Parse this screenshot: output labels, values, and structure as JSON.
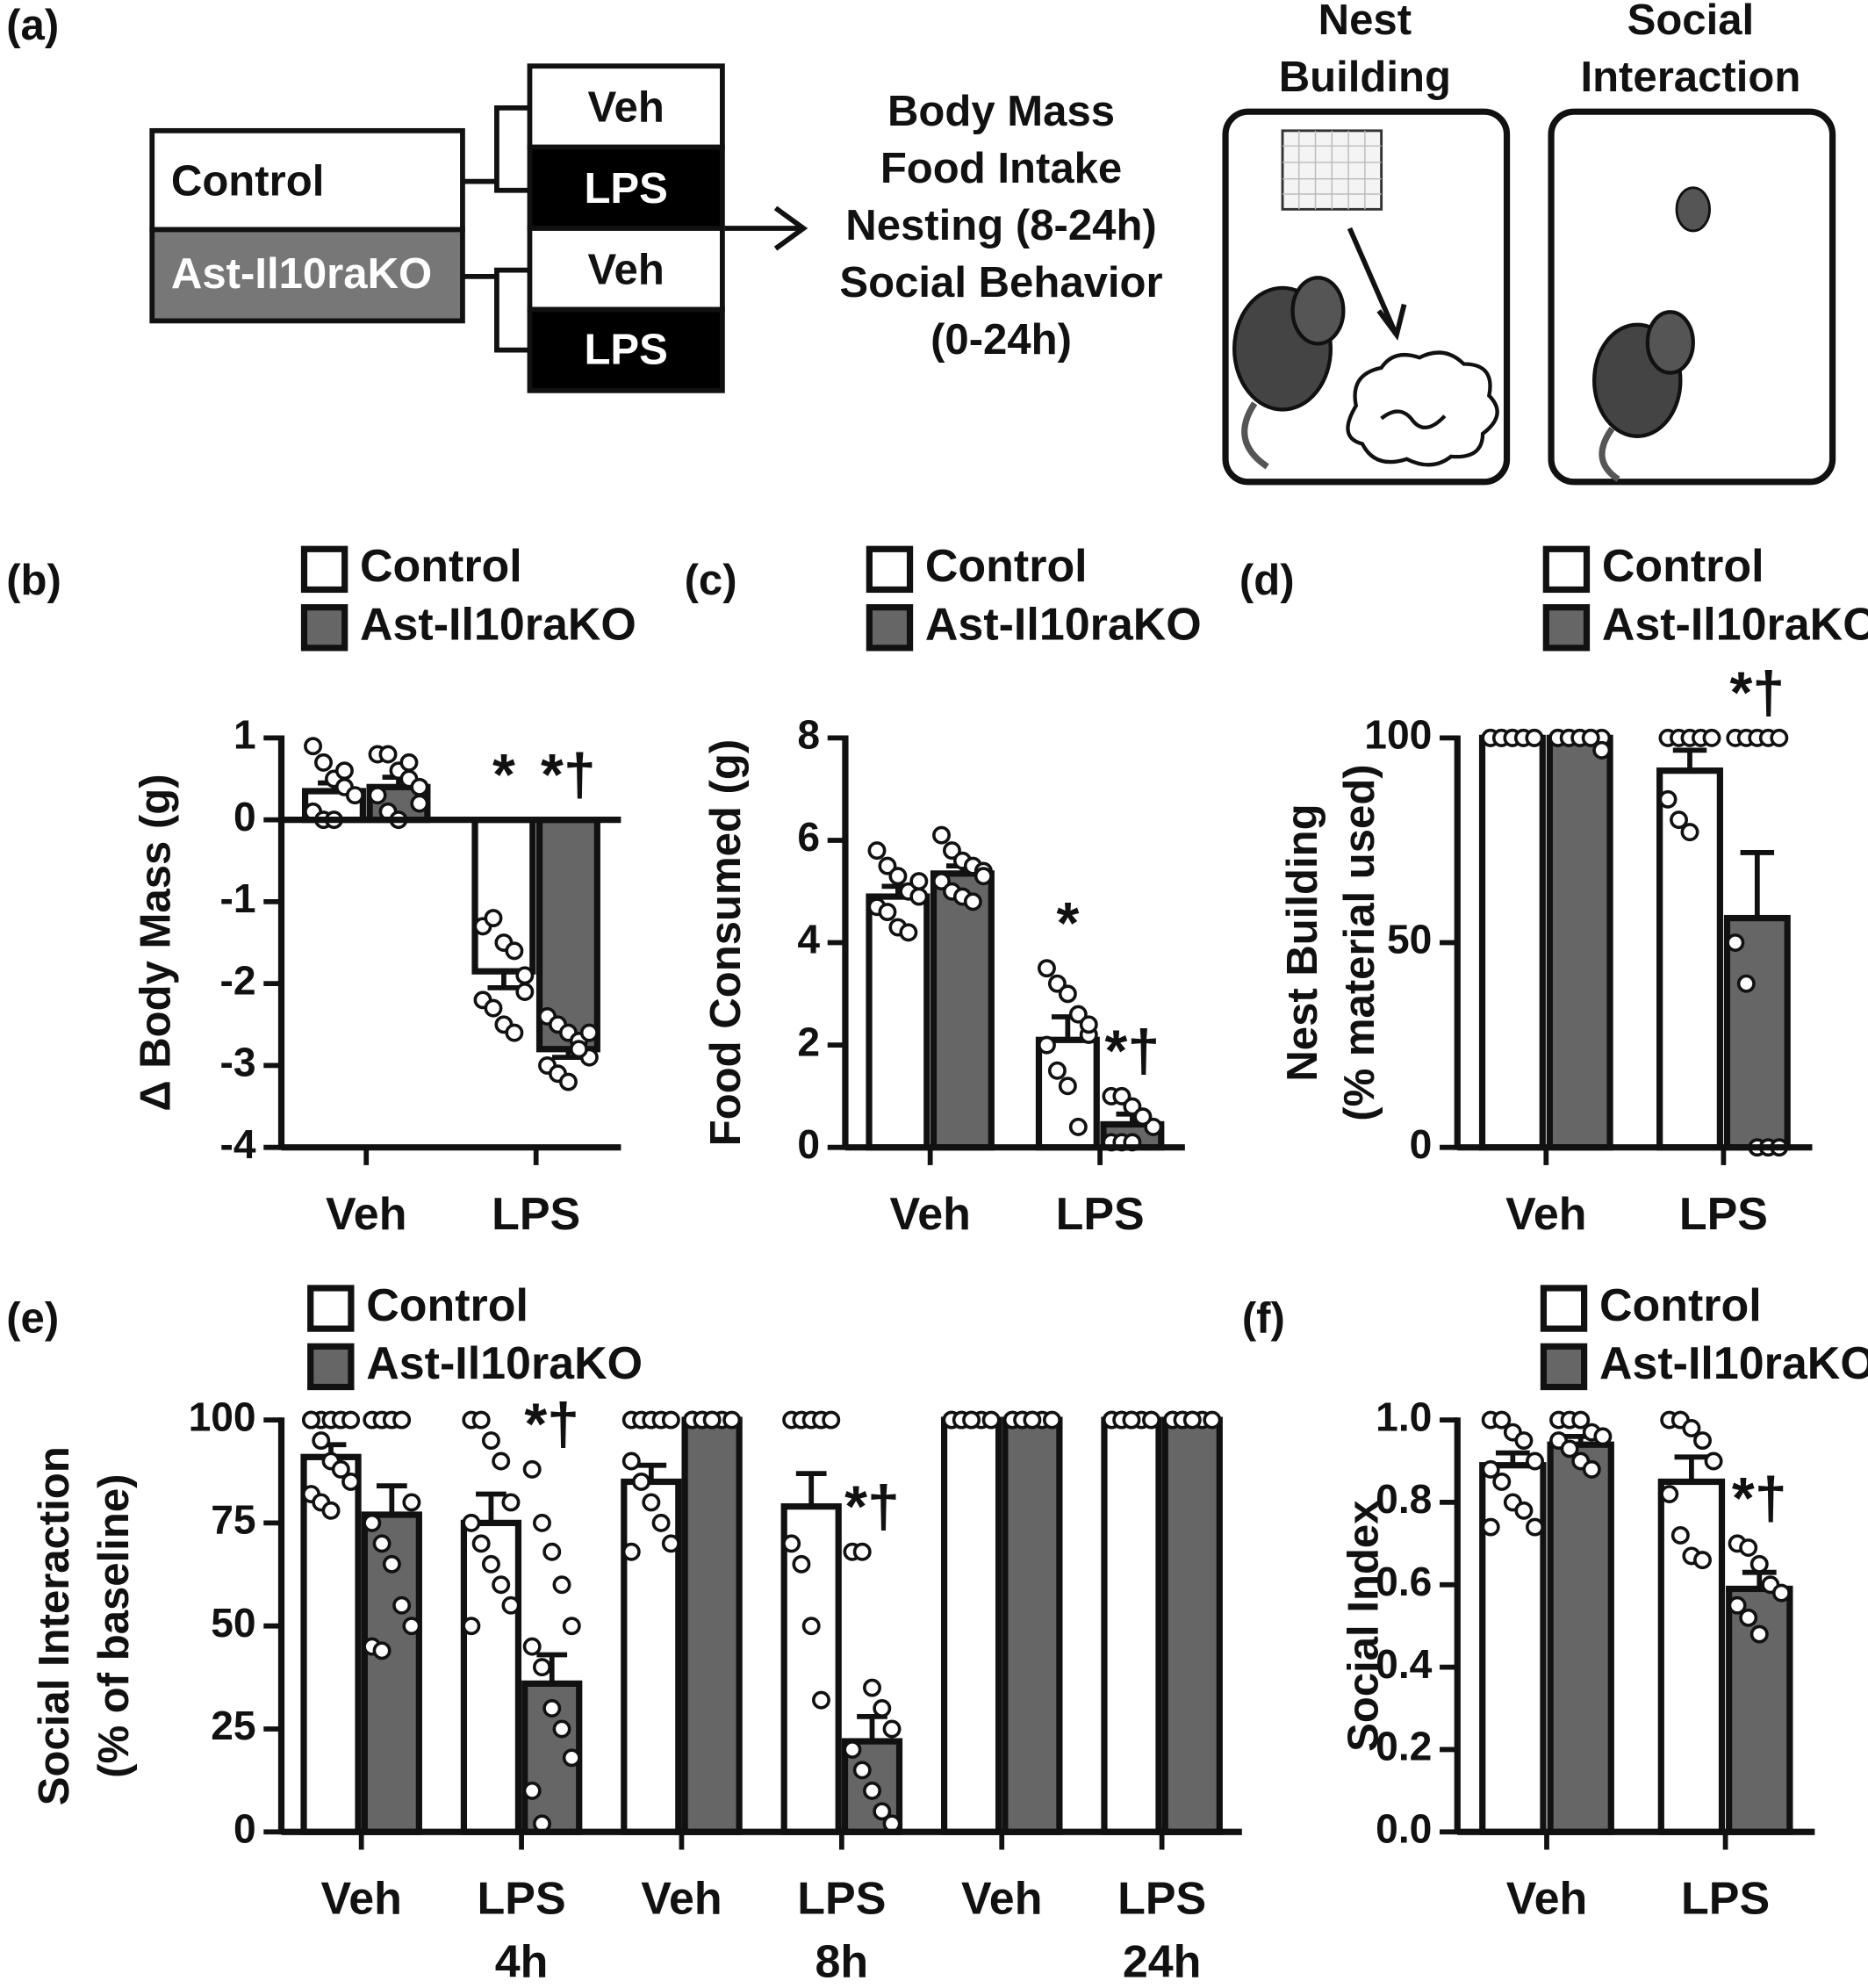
{
  "diagram": {
    "panel": "(a)",
    "groups": [
      "Control",
      "Ast-Il10raKO"
    ],
    "treatments": [
      "Veh",
      "LPS",
      "Veh",
      "LPS"
    ],
    "outcomes": [
      "Body Mass",
      "Food Intake",
      "Nesting (8-24h)",
      "Social Behavior",
      "(0-24h)"
    ],
    "nest_title": [
      "Nest",
      "Building"
    ],
    "social_title": [
      "Social",
      "Interaction"
    ]
  },
  "chart_data": [
    {
      "type": "bar",
      "panel": "(b)",
      "y_label": [
        "Δ Body Mass (g)"
      ],
      "categories": [
        "Veh",
        "LPS"
      ],
      "ylim": [
        -4,
        1
      ],
      "yticks": [
        -4,
        -3,
        -2,
        -1,
        0,
        1
      ],
      "series": [
        {
          "name": "Control",
          "color": "#ffffff",
          "values": [
            0.35,
            -1.85
          ],
          "errors": [
            0.1,
            0.2
          ],
          "annotations": [
            null,
            "*"
          ],
          "points": [
            [
              0.9,
              0.7,
              0.5,
              0.4,
              0.3,
              0.1,
              0,
              0,
              0.6
            ],
            [
              -1.3,
              -1.2,
              -1.5,
              -1.6,
              -2.1,
              -2.2,
              -2.3,
              -2.5,
              -2.6,
              -1.9
            ]
          ]
        },
        {
          "name": "Ast-Il10raKO",
          "color": "#666666",
          "values": [
            0.4,
            -2.8
          ],
          "errors": [
            0.12,
            0.1
          ],
          "annotations": [
            null,
            "*†"
          ],
          "points": [
            [
              0.8,
              0.8,
              0.6,
              0.5,
              0.4,
              0.3,
              0.1,
              0,
              0.7,
              0.2
            ],
            [
              -2.4,
              -2.5,
              -2.6,
              -2.7,
              -2.9,
              -3.0,
              -3.1,
              -3.2,
              -2.8,
              -2.6
            ]
          ]
        }
      ]
    },
    {
      "type": "bar",
      "panel": "(c)",
      "y_label": [
        "Food Consumed  (g)"
      ],
      "categories": [
        "Veh",
        "LPS"
      ],
      "ylim": [
        0,
        8
      ],
      "yticks": [
        0,
        2,
        4,
        6,
        8
      ],
      "series": [
        {
          "name": "Control",
          "color": "#ffffff",
          "values": [
            4.9,
            2.1
          ],
          "errors": [
            0.2,
            0.45
          ],
          "annotations": [
            null,
            "*"
          ],
          "points": [
            [
              5.8,
              5.5,
              5.3,
              5.0,
              4.9,
              4.7,
              4.6,
              4.3,
              4.2,
              5.2
            ],
            [
              3.5,
              3.2,
              3.0,
              2.6,
              2.2,
              2.0,
              1.5,
              1.2,
              0.4,
              2.4
            ]
          ]
        },
        {
          "name": "Ast-Il10raKO",
          "color": "#666666",
          "values": [
            5.35,
            0.45
          ],
          "errors": [
            0.15,
            0.2
          ],
          "annotations": [
            null,
            "*†"
          ],
          "points": [
            [
              6.1,
              5.8,
              5.6,
              5.5,
              5.4,
              5.2,
              5.0,
              4.9,
              4.8,
              5.3
            ],
            [
              1.0,
              1.0,
              0.8,
              0.6,
              0.4,
              0.1,
              0.1,
              0.1,
              0.6
            ]
          ]
        }
      ]
    },
    {
      "type": "bar",
      "panel": "(d)",
      "y_label": [
        "Nest Building",
        "(% material used)"
      ],
      "categories": [
        "Veh",
        "LPS"
      ],
      "ylim": [
        0,
        100
      ],
      "yticks": [
        0,
        50,
        100
      ],
      "series": [
        {
          "name": "Control",
          "color": "#ffffff",
          "values": [
            100,
            92
          ],
          "errors": [
            0,
            5
          ],
          "annotations": [
            null,
            null
          ],
          "points": [
            [
              100,
              100,
              100,
              100,
              100,
              100,
              100,
              100,
              100,
              100
            ],
            [
              100,
              100,
              100,
              100,
              100,
              85,
              80,
              77
            ]
          ]
        },
        {
          "name": "Ast-Il10raKO",
          "color": "#666666",
          "values": [
            100,
            56
          ],
          "errors": [
            0,
            16
          ],
          "annotations": [
            null,
            "*†"
          ],
          "points": [
            [
              100,
              100,
              100,
              100,
              100,
              100,
              100,
              100,
              100,
              97
            ],
            [
              100,
              100,
              100,
              100,
              100,
              50,
              40,
              0,
              0,
              0
            ]
          ]
        }
      ]
    },
    {
      "type": "bar",
      "panel": "(e)",
      "y_label": [
        "Social Interaction",
        "(% of baseline)"
      ],
      "categories": [
        "Veh",
        "LPS",
        "Veh",
        "LPS",
        "Veh",
        "LPS"
      ],
      "category_sublabels": [
        null,
        "4h",
        null,
        "8h",
        null,
        "24h"
      ],
      "ylim": [
        0,
        100
      ],
      "yticks": [
        0,
        25,
        50,
        75,
        100
      ],
      "series": [
        {
          "name": "Control",
          "color": "#ffffff",
          "values": [
            91,
            75,
            85,
            79,
            100,
            100
          ],
          "errors": [
            3,
            7,
            4,
            8,
            0,
            0
          ],
          "annotations": [
            null,
            null,
            null,
            null,
            null,
            null
          ],
          "points": [
            [
              100,
              100,
              100,
              100,
              100,
              100,
              95,
              90,
              88,
              85,
              82,
              80,
              78
            ],
            [
              100,
              100,
              95,
              90,
              80,
              75,
              70,
              65,
              60,
              55,
              50
            ],
            [
              100,
              100,
              100,
              100,
              100,
              90,
              85,
              80,
              75,
              70,
              68
            ],
            [
              100,
              100,
              100,
              100,
              100,
              70,
              65,
              50,
              32
            ],
            [
              100,
              100,
              100,
              100,
              100,
              100,
              100,
              100
            ],
            [
              100,
              100,
              100,
              100,
              100,
              100,
              100,
              100
            ]
          ]
        },
        {
          "name": "Ast-Il10raKO",
          "color": "#666666",
          "values": [
            77,
            36,
            100,
            22,
            100,
            100
          ],
          "errors": [
            7,
            7,
            0,
            6,
            0,
            0
          ],
          "annotations": [
            null,
            "*†",
            null,
            "*†",
            null,
            null
          ],
          "points": [
            [
              100,
              100,
              100,
              100,
              80,
              75,
              70,
              65,
              55,
              50,
              45,
              44
            ],
            [
              88,
              75,
              68,
              60,
              50,
              45,
              40,
              30,
              25,
              18,
              10,
              2
            ],
            [
              100,
              100,
              100,
              100,
              100,
              100,
              100,
              100
            ],
            [
              68,
              68,
              35,
              30,
              25,
              20,
              15,
              10,
              5,
              2
            ],
            [
              100,
              100,
              100,
              100,
              100,
              100,
              100,
              100
            ],
            [
              100,
              100,
              100,
              100,
              100,
              100,
              100,
              100
            ]
          ]
        }
      ]
    },
    {
      "type": "bar",
      "panel": "(f)",
      "y_label": [
        "Social Index"
      ],
      "categories": [
        "Veh",
        "LPS"
      ],
      "ylim": [
        0,
        1
      ],
      "yticks": [
        {
          "value": 0,
          "label": "0.0"
        },
        0.2,
        0.4,
        0.6,
        0.8,
        {
          "value": 1,
          "label": "1.0"
        }
      ],
      "series": [
        {
          "name": "Control",
          "color": "#ffffff",
          "values": [
            0.89,
            0.85
          ],
          "errors": [
            0.03,
            0.06
          ],
          "annotations": [
            null,
            null
          ],
          "points": [
            [
              1.0,
              1.0,
              0.97,
              0.95,
              0.9,
              0.88,
              0.85,
              0.8,
              0.78,
              0.74,
              0.74
            ],
            [
              1.0,
              1.0,
              0.98,
              0.95,
              0.9,
              0.82,
              0.72,
              0.67,
              0.66
            ]
          ]
        },
        {
          "name": "Ast-Il10raKO",
          "color": "#666666",
          "values": [
            0.94,
            0.59
          ],
          "errors": [
            0.02,
            0.04
          ],
          "annotations": [
            null,
            "*†"
          ],
          "points": [
            [
              1.0,
              1.0,
              1.0,
              0.97,
              0.96,
              0.95,
              0.93,
              0.9,
              0.88
            ],
            [
              0.7,
              0.69,
              0.65,
              0.6,
              0.58,
              0.55,
              0.52,
              0.48
            ]
          ]
        }
      ]
    }
  ]
}
